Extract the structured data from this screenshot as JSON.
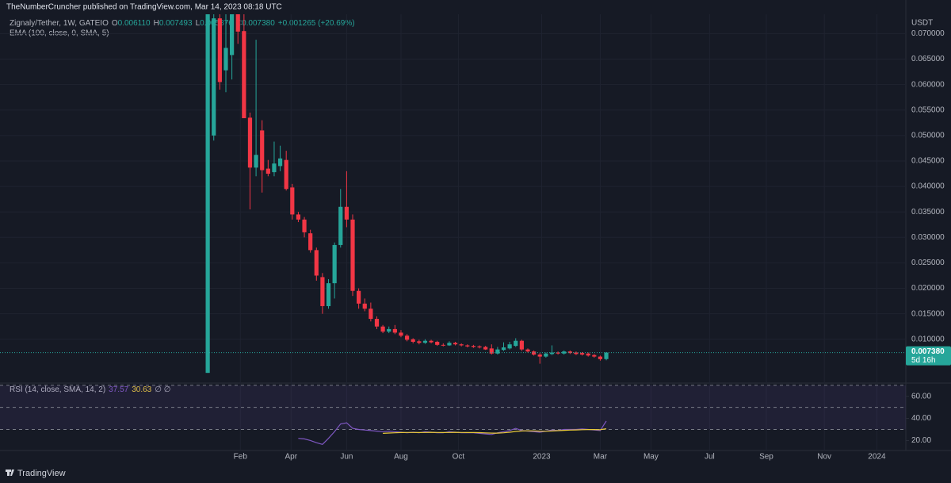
{
  "header": {
    "publisher": "TheNumberCruncher published on TradingView.com, Mar 14, 2023 08:18 UTC",
    "symbol": "Zignaly/Tether, 1W, GATEIO",
    "ohlc": [
      {
        "key": "O",
        "value": "0.006110"
      },
      {
        "key": "H",
        "value": "0.007493"
      },
      {
        "key": "L",
        "value": "0.005876"
      },
      {
        "key": "C",
        "value": "0.007380"
      }
    ],
    "change": "+0.001265 (+20.69%)",
    "indicator": "EMA (100, close, 0, SMA, 5)"
  },
  "chart_data": [
    {
      "type": "candlestick",
      "y_axis_label": "USDT",
      "up_color": "#26a69a",
      "down_color": "#f23645",
      "grid": true,
      "x": [
        0,
        1,
        2,
        3,
        4,
        5,
        6,
        7,
        8,
        9,
        10,
        11,
        12,
        13,
        14,
        15,
        16,
        17,
        18,
        19,
        20,
        21,
        22,
        23,
        24,
        25,
        26,
        27,
        28,
        29,
        30,
        31,
        32,
        33,
        34,
        35,
        36,
        37,
        38,
        39,
        40,
        41,
        42,
        43,
        44,
        45,
        46,
        47,
        48,
        49,
        50,
        51,
        52,
        53,
        54,
        55,
        56,
        57,
        58,
        59,
        60,
        61,
        62,
        63,
        64,
        65,
        66
      ],
      "open": [
        0.0034,
        0.05,
        0.073,
        0.0628,
        0.0658,
        0.0738,
        0.0705,
        0.0535,
        0.0437,
        0.051,
        0.0435,
        0.0428,
        0.044,
        0.0452,
        0.0398,
        0.0345,
        0.0335,
        0.0308,
        0.0275,
        0.0222,
        0.0165,
        0.021,
        0.0285,
        0.036,
        0.0335,
        0.0195,
        0.017,
        0.016,
        0.014,
        0.0125,
        0.0115,
        0.012,
        0.0113,
        0.0107,
        0.01,
        0.0096,
        0.0093,
        0.0097,
        0.0095,
        0.0089,
        0.0088,
        0.0093,
        0.009,
        0.0088,
        0.0087,
        0.0086,
        0.0085,
        0.0082,
        0.0072,
        0.0079,
        0.0082,
        0.0087,
        0.0097,
        0.008,
        0.0076,
        0.007,
        0.0066,
        0.0071,
        0.0074,
        0.0072,
        0.0076,
        0.0074,
        0.0073,
        0.0072,
        0.0069,
        0.0066,
        0.00611
      ],
      "high": [
        0.0738,
        0.0738,
        0.0738,
        0.0738,
        0.0738,
        0.0738,
        0.0738,
        0.0545,
        0.0688,
        0.053,
        0.0452,
        0.0488,
        0.048,
        0.047,
        0.0405,
        0.035,
        0.034,
        0.0315,
        0.028,
        0.023,
        0.0218,
        0.029,
        0.0395,
        0.043,
        0.0345,
        0.02,
        0.018,
        0.0172,
        0.0145,
        0.0128,
        0.0125,
        0.0128,
        0.0118,
        0.011,
        0.0102,
        0.0099,
        0.01,
        0.0099,
        0.0097,
        0.0092,
        0.0096,
        0.0095,
        0.0092,
        0.009,
        0.0089,
        0.0088,
        0.0087,
        0.009,
        0.0085,
        0.0094,
        0.0095,
        0.0102,
        0.0099,
        0.0082,
        0.0078,
        0.0073,
        0.0074,
        0.0088,
        0.0076,
        0.0078,
        0.0078,
        0.0076,
        0.0075,
        0.0074,
        0.0071,
        0.0068,
        0.007493
      ],
      "low": [
        0.0034,
        0.049,
        0.059,
        0.0585,
        0.061,
        0.068,
        0.0534,
        0.0355,
        0.042,
        0.0388,
        0.042,
        0.042,
        0.043,
        0.0392,
        0.0335,
        0.033,
        0.03,
        0.027,
        0.0215,
        0.015,
        0.016,
        0.018,
        0.028,
        0.032,
        0.0185,
        0.016,
        0.0155,
        0.0135,
        0.012,
        0.0112,
        0.0112,
        0.011,
        0.0104,
        0.0096,
        0.0092,
        0.009,
        0.0091,
        0.0092,
        0.0087,
        0.0086,
        0.0087,
        0.0088,
        0.0086,
        0.0084,
        0.0083,
        0.0082,
        0.0079,
        0.007,
        0.007,
        0.0077,
        0.008,
        0.0085,
        0.0077,
        0.0074,
        0.0068,
        0.0052,
        0.0064,
        0.0069,
        0.007,
        0.007,
        0.0071,
        0.0069,
        0.0068,
        0.0066,
        0.0064,
        0.0058,
        0.005876
      ],
      "close": [
        0.0738,
        0.073,
        0.0605,
        0.0672,
        0.0738,
        0.0704,
        0.0534,
        0.0437,
        0.0462,
        0.0432,
        0.0425,
        0.0445,
        0.0455,
        0.0395,
        0.0345,
        0.0335,
        0.031,
        0.0275,
        0.0225,
        0.0165,
        0.021,
        0.0285,
        0.036,
        0.0335,
        0.0195,
        0.017,
        0.016,
        0.014,
        0.0125,
        0.0115,
        0.012,
        0.0113,
        0.0107,
        0.0099,
        0.0095,
        0.0093,
        0.0097,
        0.0094,
        0.0089,
        0.0088,
        0.0093,
        0.009,
        0.0088,
        0.0086,
        0.0085,
        0.0084,
        0.008,
        0.0072,
        0.008,
        0.0084,
        0.009,
        0.0097,
        0.008,
        0.0076,
        0.007,
        0.0066,
        0.0072,
        0.0074,
        0.0072,
        0.0076,
        0.0073,
        0.0071,
        0.007,
        0.0068,
        0.0066,
        0.0061,
        0.00738
      ],
      "xlim": [
        -34.4,
        115.6
      ],
      "ylim": [
        0.0014,
        0.0738
      ],
      "yticks": [
        {
          "value": 0.01,
          "label": "0.010000"
        },
        {
          "value": 0.015,
          "label": "0.015000"
        },
        {
          "value": 0.02,
          "label": "0.020000"
        },
        {
          "value": 0.025,
          "label": "0.025000"
        },
        {
          "value": 0.03,
          "label": "0.030000"
        },
        {
          "value": 0.035,
          "label": "0.035000"
        },
        {
          "value": 0.04,
          "label": "0.040000"
        },
        {
          "value": 0.045,
          "label": "0.045000"
        },
        {
          "value": 0.05,
          "label": "0.050000"
        },
        {
          "value": 0.055,
          "label": "0.055000"
        },
        {
          "value": 0.06,
          "label": "0.060000"
        },
        {
          "value": 0.065,
          "label": "0.065000"
        },
        {
          "value": 0.07,
          "label": "0.070000"
        }
      ],
      "xticks": [
        {
          "value": 5.4,
          "label": "Feb"
        },
        {
          "value": 13.8,
          "label": "Apr"
        },
        {
          "value": 23.0,
          "label": "Jun"
        },
        {
          "value": 32.0,
          "label": "Aug"
        },
        {
          "value": 41.5,
          "label": "Oct"
        },
        {
          "value": 55.3,
          "label": "2023"
        },
        {
          "value": 65.0,
          "label": "Mar"
        },
        {
          "value": 73.4,
          "label": "May"
        },
        {
          "value": 83.1,
          "label": "Jul"
        },
        {
          "value": 92.5,
          "label": "Sep"
        },
        {
          "value": 102.1,
          "label": "Nov"
        },
        {
          "value": 110.8,
          "label": "2024"
        }
      ],
      "last_price": 0.00738,
      "last_price_label": "0.007380",
      "countdown": "5d 16h"
    },
    {
      "type": "line",
      "title": "RSI (14, close, SMA, 14, 2)",
      "extra": "∅ ∅",
      "xlim": [
        -34.4,
        115.6
      ],
      "ylim": [
        11,
        70.5
      ],
      "yticks": [
        {
          "value": 60,
          "label": "60.00"
        },
        {
          "value": 40,
          "label": "40.00"
        },
        {
          "value": 20,
          "label": "20.00"
        }
      ],
      "bands": [
        70,
        50,
        30
      ],
      "band_color": "#7e57c2",
      "x": [
        0,
        1,
        2,
        3,
        4,
        5,
        6,
        7,
        8,
        9,
        10,
        11,
        12,
        13,
        14,
        15,
        16,
        17,
        18,
        19,
        20,
        21,
        22,
        23,
        24,
        25,
        26,
        27,
        28,
        29,
        30,
        31,
        32,
        33,
        34,
        35,
        36,
        37,
        38,
        39,
        40,
        41,
        42,
        43,
        44,
        45,
        46,
        47,
        48,
        49,
        50,
        51,
        52,
        53,
        54,
        55,
        56,
        57,
        58,
        59,
        60,
        61,
        62,
        63,
        64,
        65,
        66
      ],
      "series": [
        {
          "color": "#7e57c2",
          "last_label": "37.57",
          "values": [
            null,
            null,
            null,
            null,
            null,
            null,
            null,
            null,
            null,
            null,
            null,
            null,
            null,
            null,
            null,
            22,
            21.5,
            20,
            18,
            16.5,
            22,
            28,
            35,
            36,
            31,
            30,
            29.5,
            29,
            28.5,
            28,
            28.5,
            28,
            27.5,
            27,
            27.5,
            27,
            28,
            27.5,
            27,
            27,
            28,
            27.5,
            27,
            27,
            27,
            26.5,
            26,
            25.5,
            27,
            28,
            29,
            31,
            29,
            28.5,
            28,
            27.5,
            28.5,
            29.5,
            29,
            30,
            30,
            30,
            30.5,
            30,
            29.5,
            29,
            37.57
          ]
        },
        {
          "color": "#e8c93a",
          "last_label": "30.63",
          "values": [
            null,
            null,
            null,
            null,
            null,
            null,
            null,
            null,
            null,
            null,
            null,
            null,
            null,
            null,
            null,
            null,
            null,
            null,
            null,
            null,
            null,
            null,
            null,
            null,
            null,
            null,
            null,
            null,
            null,
            26.5,
            26.8,
            27,
            27.2,
            27.3,
            27.3,
            27.2,
            27.3,
            27.4,
            27.3,
            27.2,
            27.3,
            27.4,
            27.3,
            27.2,
            27.2,
            27.1,
            26.9,
            26.7,
            26.7,
            27,
            27.5,
            28.2,
            28.6,
            28.8,
            28.7,
            28.5,
            28.4,
            28.6,
            28.9,
            29.2,
            29.4,
            29.6,
            29.8,
            29.9,
            29.9,
            29.8,
            30.63
          ]
        }
      ]
    }
  ],
  "footer": "TradingView"
}
